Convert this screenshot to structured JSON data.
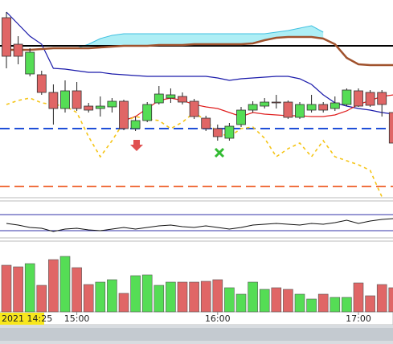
{
  "chart_data": {
    "type": "candlestick",
    "up_color": "#55dd55",
    "down_color": "#e06666",
    "ylim": [
      5,
      250
    ],
    "open": [
      228,
      195,
      158,
      157,
      135,
      115,
      137,
      118,
      115,
      117,
      124,
      90,
      100,
      122,
      128,
      130,
      124,
      103,
      90,
      78,
      95,
      113,
      118,
      123,
      123,
      104,
      113,
      120,
      115,
      120,
      137,
      135,
      135,
      110
    ],
    "high": [
      235,
      205,
      190,
      162,
      145,
      150,
      148,
      122,
      130,
      128,
      126,
      105,
      123,
      143,
      140,
      135,
      127,
      106,
      95,
      97,
      117,
      124,
      128,
      132,
      125,
      123,
      132,
      123,
      130,
      140,
      140,
      138,
      138,
      115
    ],
    "low": [
      165,
      170,
      155,
      132,
      95,
      110,
      112,
      110,
      105,
      110,
      88,
      87,
      98,
      120,
      122,
      120,
      102,
      87,
      75,
      75,
      92,
      110,
      115,
      115,
      102,
      102,
      110,
      110,
      112,
      118,
      117,
      117,
      105,
      70
    ],
    "close": [
      180,
      180,
      185,
      135,
      115,
      137,
      115,
      113,
      118,
      124,
      90,
      100,
      120,
      133,
      132,
      123,
      105,
      90,
      80,
      93,
      113,
      120,
      123,
      122,
      104,
      120,
      120,
      113,
      122,
      138,
      118,
      119,
      120,
      72
    ],
    "xticks": [
      {
        "value": 6,
        "label": "15:00"
      },
      {
        "value": 18,
        "label": "16:00"
      },
      {
        "value": 30,
        "label": "17:00"
      }
    ],
    "cursor_label": "2021 14:25",
    "indicators": [
      {
        "color": "#1a1aaa",
        "values": [
          235,
          220,
          205,
          195,
          165,
          164,
          162,
          160,
          160,
          158,
          157,
          156,
          155,
          155,
          155,
          155,
          155,
          155,
          153,
          150,
          152,
          153,
          154,
          155,
          155,
          152,
          145,
          132,
          122,
          118,
          115,
          113,
          110,
          108
        ]
      },
      {
        "color": "#e02020",
        "values": [
          null,
          null,
          null,
          null,
          null,
          null,
          null,
          null,
          null,
          null,
          100,
          105,
          115,
          125,
          128,
          125,
          120,
          117,
          115,
          110,
          105,
          110,
          108,
          107,
          106,
          106,
          105,
          105,
          107,
          112,
          120,
          125,
          130,
          132
        ]
      },
      {
        "color": "#f5c518",
        "dashed": true,
        "values": [
          120,
          125,
          128,
          122,
          120,
          118,
          110,
          80,
          55,
          75,
          98,
          105,
          102,
          100,
          90,
          98,
          110,
          100,
          85,
          80,
          90,
          92,
          78,
          55,
          65,
          72,
          55,
          75,
          55,
          50,
          45,
          38,
          5,
          null
        ]
      },
      {
        "color": "#a0522d",
        "values": [
          188,
          188,
          188,
          189,
          190,
          190,
          190,
          190,
          191,
          192,
          193,
          193,
          193,
          194,
          194,
          194,
          195,
          195,
          195,
          195,
          195,
          196,
          200,
          203,
          204,
          204,
          204,
          202,
          195,
          178,
          170,
          169,
          169,
          169
        ]
      }
    ],
    "cloud": {
      "color": "#aeeef5",
      "line_color": "#40c0e0",
      "lower": 3,
      "values": [
        null,
        null,
        null,
        null,
        null,
        null,
        190,
        195,
        202,
        206,
        208,
        208,
        208,
        208,
        208,
        208,
        208,
        208,
        208,
        208,
        208,
        208,
        208,
        210,
        212,
        215,
        218,
        210,
        null,
        null,
        null,
        null,
        null,
        null
      ]
    },
    "levels": [
      {
        "value": 193,
        "color": "#000000",
        "dashed": false
      },
      {
        "value": 90,
        "color": "#1f4fd8",
        "dashed": true
      },
      {
        "value": 18,
        "color": "#f07040",
        "dashed": true
      }
    ],
    "oscillator": {
      "ylim": [
        5,
        50
      ],
      "color": "#111111",
      "level_color": "#3333aa",
      "levels": [
        33,
        13
      ],
      "values": [
        22,
        20,
        17,
        16,
        12,
        15,
        16,
        14,
        13,
        15,
        17,
        15,
        17,
        19,
        20,
        18,
        17,
        19,
        17,
        15,
        17,
        20,
        21,
        22,
        21,
        20,
        22,
        21,
        23,
        26,
        22,
        25,
        27,
        28
      ]
    },
    "volume": {
      "ylim": [
        0,
        88
      ],
      "values": [
        58,
        56,
        60,
        33,
        65,
        69,
        55,
        34,
        37,
        40,
        23,
        45,
        46,
        33,
        37,
        37,
        37,
        38,
        40,
        30,
        22,
        37,
        28,
        30,
        28,
        22,
        16,
        22,
        18,
        18,
        36,
        20,
        34,
        30
      ]
    }
  }
}
